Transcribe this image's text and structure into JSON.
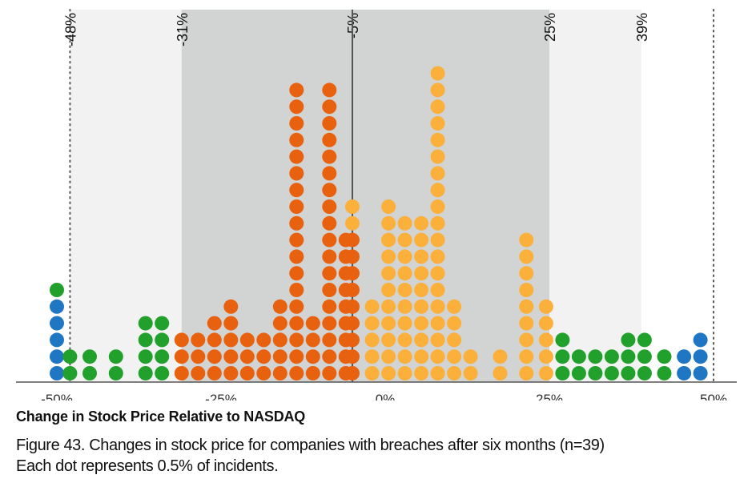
{
  "chart_data": {
    "type": "dot",
    "xlabel": "Change in Stock Price Relative to NASDAQ",
    "caption_line1": "Figure 43. Changes in stock price for companies with breaches after six months (n=39)",
    "caption_line2": "Each dot represents 0.5% of incidents.",
    "xlim": [
      -51.5,
      50
    ],
    "x_ticks": [
      -50,
      -25,
      0,
      25,
      50
    ],
    "x_tick_labels": [
      "-50%",
      "-25%",
      "0%",
      "25%",
      "50%"
    ],
    "bands": [
      {
        "from": -48,
        "to": 39,
        "color": "#f2f2f2"
      },
      {
        "from": -31,
        "to": 25,
        "color": "#d2d3d3"
      }
    ],
    "reference_lines": [
      {
        "value": -48,
        "label": "-48%",
        "style": "dotted"
      },
      {
        "value": -31,
        "label": "-31%",
        "style": "none"
      },
      {
        "value": -5,
        "label": "-5%",
        "style": "solid"
      },
      {
        "value": 25,
        "label": "25%",
        "style": "none"
      },
      {
        "value": 39,
        "label": "39%",
        "style": "none"
      },
      {
        "value": 50,
        "label": "",
        "style": "dotted"
      }
    ],
    "colors": {
      "blue": "#1f77c4",
      "green": "#22a02c",
      "dark_orange": "#e8610e",
      "light_orange": "#fbb03b"
    },
    "stacks": [
      {
        "x": -50,
        "dots": [
          "blue",
          "blue",
          "blue",
          "blue",
          "blue",
          "green"
        ]
      },
      {
        "x": -48,
        "dots": [
          "green",
          "green"
        ]
      },
      {
        "x": -45,
        "dots": [
          "green",
          "green"
        ]
      },
      {
        "x": -41,
        "dots": [
          "green",
          "green"
        ]
      },
      {
        "x": -36.5,
        "dots": [
          "green",
          "green",
          "green",
          "green"
        ]
      },
      {
        "x": -34,
        "dots": [
          "green",
          "green",
          "green",
          "green"
        ]
      },
      {
        "x": -31,
        "dots": [
          "dark_orange",
          "dark_orange",
          "dark_orange"
        ]
      },
      {
        "x": -28.5,
        "dots": [
          "dark_orange",
          "dark_orange",
          "dark_orange"
        ]
      },
      {
        "x": -26,
        "dots": [
          "dark_orange",
          "dark_orange",
          "dark_orange",
          "dark_orange"
        ]
      },
      {
        "x": -23.5,
        "dots": [
          "dark_orange",
          "dark_orange",
          "dark_orange",
          "dark_orange",
          "dark_orange"
        ]
      },
      {
        "x": -21,
        "dots": [
          "dark_orange",
          "dark_orange",
          "dark_orange"
        ]
      },
      {
        "x": -18.5,
        "dots": [
          "dark_orange",
          "dark_orange",
          "dark_orange"
        ]
      },
      {
        "x": -16,
        "dots": [
          "dark_orange",
          "dark_orange",
          "dark_orange",
          "dark_orange",
          "dark_orange"
        ]
      },
      {
        "x": -13.5,
        "dots": [
          "dark_orange",
          "dark_orange",
          "dark_orange",
          "dark_orange",
          "dark_orange",
          "dark_orange",
          "dark_orange",
          "dark_orange",
          "dark_orange",
          "dark_orange",
          "dark_orange",
          "dark_orange",
          "dark_orange",
          "dark_orange",
          "dark_orange",
          "dark_orange",
          "dark_orange",
          "dark_orange"
        ]
      },
      {
        "x": -11,
        "dots": [
          "dark_orange",
          "dark_orange",
          "dark_orange",
          "dark_orange"
        ]
      },
      {
        "x": -8.5,
        "dots": [
          "dark_orange",
          "dark_orange",
          "dark_orange",
          "dark_orange",
          "dark_orange",
          "dark_orange",
          "dark_orange",
          "dark_orange",
          "dark_orange",
          "dark_orange",
          "dark_orange",
          "dark_orange",
          "dark_orange",
          "dark_orange",
          "dark_orange",
          "dark_orange",
          "dark_orange",
          "dark_orange"
        ]
      },
      {
        "x": -6,
        "dots": [
          "dark_orange",
          "dark_orange",
          "dark_orange",
          "dark_orange",
          "dark_orange",
          "dark_orange",
          "dark_orange",
          "dark_orange",
          "dark_orange"
        ]
      },
      {
        "x": -5,
        "dots": [
          "dark_orange",
          "dark_orange",
          "dark_orange",
          "dark_orange",
          "dark_orange",
          "dark_orange",
          "dark_orange",
          "dark_orange",
          "dark_orange",
          "light_orange",
          "light_orange"
        ]
      },
      {
        "x": -2,
        "dots": [
          "light_orange",
          "light_orange",
          "light_orange",
          "light_orange",
          "light_orange"
        ]
      },
      {
        "x": 0.5,
        "dots": [
          "light_orange",
          "light_orange",
          "light_orange",
          "light_orange",
          "light_orange",
          "light_orange",
          "light_orange",
          "light_orange",
          "light_orange",
          "light_orange",
          "light_orange"
        ]
      },
      {
        "x": 3,
        "dots": [
          "light_orange",
          "light_orange",
          "light_orange",
          "light_orange",
          "light_orange",
          "light_orange",
          "light_orange",
          "light_orange",
          "light_orange",
          "light_orange"
        ]
      },
      {
        "x": 5.5,
        "dots": [
          "light_orange",
          "light_orange",
          "light_orange",
          "light_orange",
          "light_orange",
          "light_orange",
          "light_orange",
          "light_orange",
          "light_orange",
          "light_orange"
        ]
      },
      {
        "x": 8,
        "dots": [
          "light_orange",
          "light_orange",
          "light_orange",
          "light_orange",
          "light_orange",
          "light_orange",
          "light_orange",
          "light_orange",
          "light_orange",
          "light_orange",
          "light_orange",
          "light_orange",
          "light_orange",
          "light_orange",
          "light_orange",
          "light_orange",
          "light_orange",
          "light_orange",
          "light_orange"
        ]
      },
      {
        "x": 10.5,
        "dots": [
          "light_orange",
          "light_orange",
          "light_orange",
          "light_orange",
          "light_orange"
        ]
      },
      {
        "x": 13,
        "dots": [
          "light_orange",
          "light_orange"
        ]
      },
      {
        "x": 17.5,
        "dots": [
          "light_orange",
          "light_orange"
        ]
      },
      {
        "x": 21.5,
        "dots": [
          "light_orange",
          "light_orange",
          "light_orange",
          "light_orange",
          "light_orange",
          "light_orange",
          "light_orange",
          "light_orange",
          "light_orange"
        ]
      },
      {
        "x": 24.5,
        "dots": [
          "light_orange",
          "light_orange",
          "light_orange",
          "light_orange",
          "light_orange"
        ]
      },
      {
        "x": 27,
        "dots": [
          "green",
          "green",
          "green"
        ]
      },
      {
        "x": 29.5,
        "dots": [
          "green",
          "green"
        ]
      },
      {
        "x": 32,
        "dots": [
          "green",
          "green"
        ]
      },
      {
        "x": 34.5,
        "dots": [
          "green",
          "green"
        ]
      },
      {
        "x": 37,
        "dots": [
          "green",
          "green",
          "green"
        ]
      },
      {
        "x": 39.5,
        "dots": [
          "green",
          "green",
          "green"
        ]
      },
      {
        "x": 42.5,
        "dots": [
          "green",
          "green"
        ]
      },
      {
        "x": 45.5,
        "dots": [
          "blue",
          "blue"
        ]
      },
      {
        "x": 48,
        "dots": [
          "blue",
          "blue",
          "blue"
        ]
      }
    ]
  }
}
